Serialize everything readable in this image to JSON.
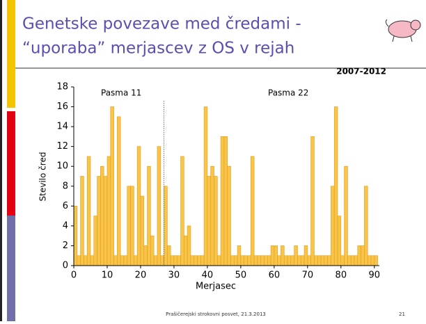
{
  "slide": {
    "title": [
      "Genetske povezave med čredami -",
      "“uporaba” merjascev z OS v rejah"
    ],
    "footer": "Prašičerejski strokovni posvet, 21.3.2013",
    "page_number": "21"
  },
  "chart_data": {
    "type": "bar",
    "subtitle": "2007-2012",
    "x_label": "Merjasec",
    "y_label": "Stevilo čred",
    "annotations": [
      "Pasma 11",
      "Pasma 22"
    ],
    "divider_x": 27,
    "x": [
      0,
      1,
      2,
      3,
      4,
      5,
      6,
      7,
      8,
      9,
      10,
      11,
      12,
      13,
      14,
      15,
      16,
      17,
      18,
      19,
      20,
      21,
      22,
      23,
      24,
      25,
      26,
      27,
      28,
      29,
      30,
      31,
      32,
      33,
      34,
      35,
      36,
      37,
      38,
      39,
      40,
      41,
      42,
      43,
      44,
      45,
      46,
      47,
      48,
      49,
      50,
      51,
      52,
      53,
      54,
      55,
      56,
      57,
      58,
      59,
      60,
      61,
      62,
      63,
      64,
      65,
      66,
      67,
      68,
      69,
      70,
      71,
      72,
      73,
      74,
      75,
      76,
      77,
      78,
      79,
      80,
      81,
      82,
      83,
      84,
      85,
      86,
      87,
      88,
      89,
      90
    ],
    "values": [
      6,
      1,
      9,
      1,
      11,
      1,
      5,
      9,
      10,
      9,
      11,
      16,
      1,
      15,
      1,
      1,
      8,
      8,
      1,
      12,
      7,
      2,
      10,
      3,
      1,
      12,
      1,
      8,
      2,
      1,
      1,
      1,
      11,
      3,
      4,
      1,
      1,
      1,
      1,
      16,
      9,
      10,
      9,
      1,
      13,
      13,
      10,
      1,
      1,
      2,
      1,
      1,
      1,
      11,
      1,
      1,
      1,
      1,
      1,
      2,
      2,
      1,
      2,
      1,
      1,
      1,
      2,
      1,
      1,
      2,
      1,
      13,
      1,
      1,
      1,
      1,
      1,
      8,
      16,
      5,
      1,
      10,
      1,
      1,
      1,
      2,
      2,
      8,
      1,
      1,
      1
    ],
    "color": "#f8c548",
    "edge_color": "#e39a1c",
    "xlim": [
      0,
      91.5
    ],
    "ylim": [
      0,
      18
    ],
    "xticks": [
      0,
      10,
      20,
      30,
      40,
      50,
      60,
      70,
      80,
      90
    ],
    "yticks": [
      0,
      2,
      4,
      6,
      8,
      10,
      12,
      14,
      16,
      18
    ]
  }
}
